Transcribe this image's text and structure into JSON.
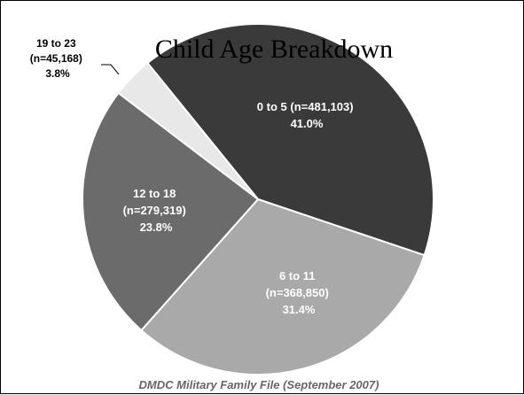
{
  "chart_data": {
    "type": "pie",
    "title": "Child Age Breakdown",
    "source": "DMDC Military Family File (September 2007)",
    "slices": [
      {
        "label": "0 to 5",
        "count": "(n=481,103)",
        "value": 41.0,
        "percent": "41.0%",
        "color": "#3a3a3a"
      },
      {
        "label": "6 to 11",
        "count": "(n=368,850)",
        "value": 31.4,
        "percent": "31.4%",
        "color": "#a9a9a9"
      },
      {
        "label": "12 to 18",
        "count": "(n=279,319)",
        "value": 23.8,
        "percent": "23.8%",
        "color": "#6b6b6b"
      },
      {
        "label": "19 to 23",
        "count": "(n=45,168)",
        "value": 3.8,
        "percent": "3.8%",
        "color": "#e8e8e8"
      }
    ]
  }
}
